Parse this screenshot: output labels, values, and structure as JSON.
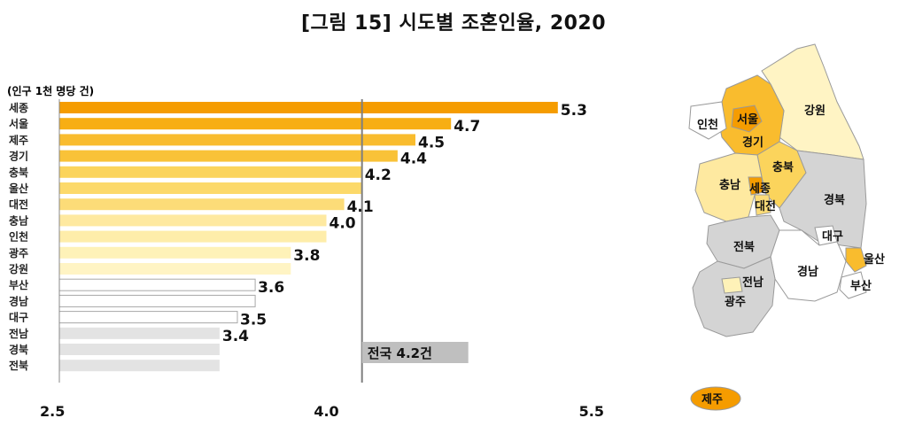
{
  "title": "[그림 15] 시도별 조혼인율, 2020",
  "chart_data": {
    "type": "bar",
    "orientation": "horizontal",
    "unit_label": "(인구 1천 명당 건)",
    "categories": [
      "세종",
      "서울",
      "제주",
      "경기",
      "충북",
      "울산",
      "대전",
      "충남",
      "인천",
      "광주",
      "강원",
      "부산",
      "경남",
      "대구",
      "전남",
      "경북",
      "전북"
    ],
    "values": [
      5.3,
      4.7,
      4.5,
      4.4,
      4.2,
      4.2,
      4.1,
      4.0,
      4.0,
      3.8,
      3.8,
      3.6,
      3.6,
      3.5,
      3.4,
      3.4,
      3.4
    ],
    "value_labels": [
      "5.3",
      "4.7",
      "4.5",
      "4.4",
      "4.2",
      "",
      "4.1",
      "4.0",
      "",
      "3.8",
      "",
      "3.6",
      "",
      "3.5",
      "3.4",
      "",
      ""
    ],
    "colors": [
      "#F59C00",
      "#F7AE14",
      "#F9BC2E",
      "#F9C238",
      "#FBD45C",
      "#FCD96A",
      "#FCDC78",
      "#FEE9A0",
      "#FEEDAA",
      "#FEF2B8",
      "#FFF4C4",
      "#FFFFFF",
      "#FFFFFF",
      "#FFFFFF",
      "#E3E3E3",
      "#E3E3E3",
      "#E3E3E3"
    ],
    "xlim": [
      2.5,
      5.5
    ],
    "xticks": [
      "2.5",
      "4.0",
      "5.5"
    ],
    "reference": {
      "value": 4.2,
      "label": "전국 4.2건"
    }
  },
  "map": {
    "regions": [
      {
        "name": "인천",
        "color": "#FFFFFF"
      },
      {
        "name": "서울",
        "color": "#F59C00"
      },
      {
        "name": "경기",
        "color": "#F9BC2E"
      },
      {
        "name": "강원",
        "color": "#FFF4C4"
      },
      {
        "name": "충북",
        "color": "#FBD45C"
      },
      {
        "name": "충남",
        "color": "#FEE9A0"
      },
      {
        "name": "세종",
        "color": "#F59C00"
      },
      {
        "name": "대전",
        "color": "#FCDC78"
      },
      {
        "name": "경북",
        "color": "#D4D4D4"
      },
      {
        "name": "대구",
        "color": "#FFFFFF"
      },
      {
        "name": "울산",
        "color": "#F9BC2E"
      },
      {
        "name": "전북",
        "color": "#D4D4D4"
      },
      {
        "name": "경남",
        "color": "#FFFFFF"
      },
      {
        "name": "부산",
        "color": "#FFFFFF"
      },
      {
        "name": "광주",
        "color": "#FEF2B8"
      },
      {
        "name": "전남",
        "color": "#D4D4D4"
      },
      {
        "name": "제주",
        "color": "#F59C00"
      }
    ]
  }
}
